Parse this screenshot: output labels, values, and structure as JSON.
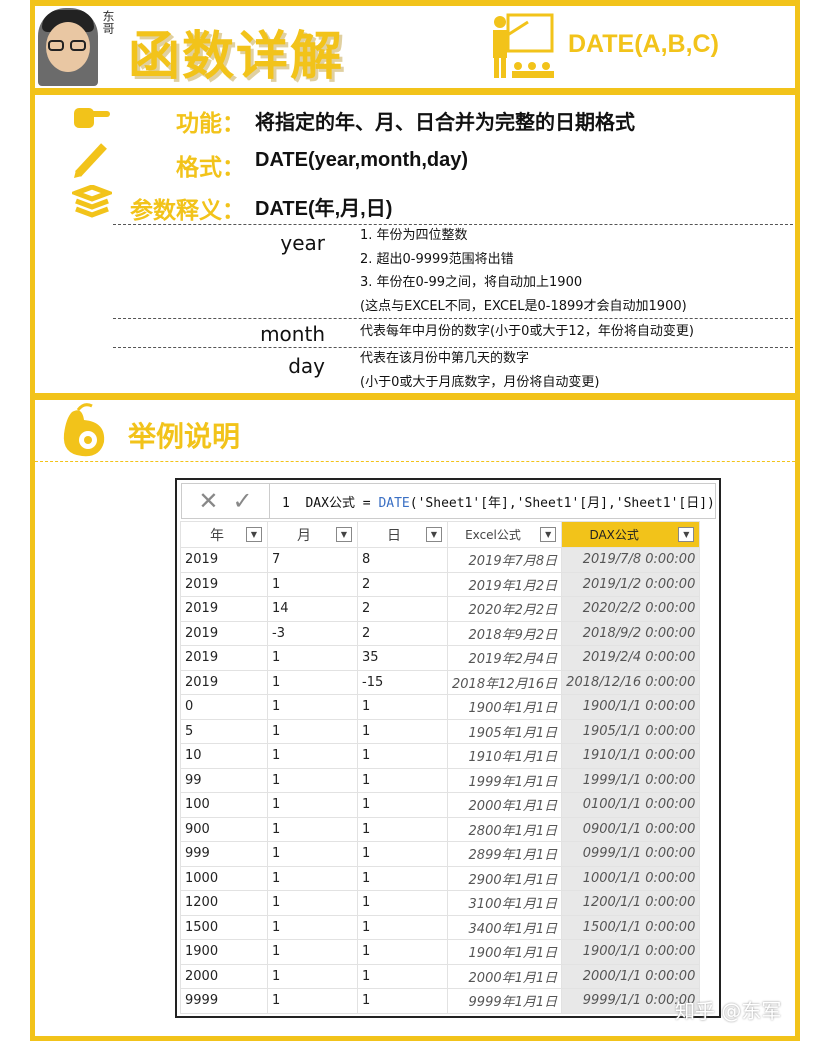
{
  "header": {
    "avatar_signature": "东哥",
    "title": "函数详解",
    "function_title": "DATE(A,B,C)"
  },
  "info": {
    "function_label": "功能：",
    "function_value": "将指定的年、月、日合并为完整的日期格式",
    "format_label": "格式：",
    "format_value": "DATE(year,month,day)",
    "params_label": "参数释义：",
    "params_value": "DATE(年,月,日)",
    "params": [
      {
        "name": "year",
        "lines": [
          "1. 年份为四位整数",
          "2. 超出0-9999范围将出错",
          "3. 年份在0-99之间，将自动加上1900",
          "(这点与EXCEL不同，EXCEL是0-1899才会自动加1900)"
        ]
      },
      {
        "name": "month",
        "lines": [
          "代表每年中月份的数字(小于0或大于12，年份将自动变更)"
        ]
      },
      {
        "name": "day",
        "lines": [
          "代表在该月份中第几天的数字",
          "(小于0或大于月底数字，月份将自动变更)"
        ]
      }
    ]
  },
  "example": {
    "title": "举例说明"
  },
  "formula_bar": {
    "line_no": "1",
    "prefix": "DAX公式 = ",
    "func": "DATE",
    "args": "('Sheet1'[年],'Sheet1'[月],'Sheet1'[日])"
  },
  "table": {
    "columns": [
      "年",
      "月",
      "日",
      "Excel公式",
      "DAX公式"
    ],
    "rows": [
      [
        "2019",
        "7",
        "8",
        "2019年7月8日",
        "2019/7/8 0:00:00"
      ],
      [
        "2019",
        "1",
        "2",
        "2019年1月2日",
        "2019/1/2 0:00:00"
      ],
      [
        "2019",
        "14",
        "2",
        "2020年2月2日",
        "2020/2/2 0:00:00"
      ],
      [
        "2019",
        "-3",
        "2",
        "2018年9月2日",
        "2018/9/2 0:00:00"
      ],
      [
        "2019",
        "1",
        "35",
        "2019年2月4日",
        "2019/2/4 0:00:00"
      ],
      [
        "2019",
        "1",
        "-15",
        "2018年12月16日",
        "2018/12/16 0:00:00"
      ],
      [
        "0",
        "1",
        "1",
        "1900年1月1日",
        "1900/1/1 0:00:00"
      ],
      [
        "5",
        "1",
        "1",
        "1905年1月1日",
        "1905/1/1 0:00:00"
      ],
      [
        "10",
        "1",
        "1",
        "1910年1月1日",
        "1910/1/1 0:00:00"
      ],
      [
        "99",
        "1",
        "1",
        "1999年1月1日",
        "1999/1/1 0:00:00"
      ],
      [
        "100",
        "1",
        "1",
        "2000年1月1日",
        "0100/1/1 0:00:00"
      ],
      [
        "900",
        "1",
        "1",
        "2800年1月1日",
        "0900/1/1 0:00:00"
      ],
      [
        "999",
        "1",
        "1",
        "2899年1月1日",
        "0999/1/1 0:00:00"
      ],
      [
        "1000",
        "1",
        "1",
        "2900年1月1日",
        "1000/1/1 0:00:00"
      ],
      [
        "1200",
        "1",
        "1",
        "3100年1月1日",
        "1200/1/1 0:00:00"
      ],
      [
        "1500",
        "1",
        "1",
        "3400年1月1日",
        "1500/1/1 0:00:00"
      ],
      [
        "1900",
        "1",
        "1",
        "1900年1月1日",
        "1900/1/1 0:00:00"
      ],
      [
        "2000",
        "1",
        "1",
        "2000年1月1日",
        "2000/1/1 0:00:00"
      ],
      [
        "9999",
        "1",
        "1",
        "9999年1月1日",
        "9999/1/1 0:00:00"
      ]
    ]
  },
  "watermark": "知乎 @东军",
  "colors": {
    "accent": "#f2c31a",
    "dax_header": "#f2c31a"
  }
}
